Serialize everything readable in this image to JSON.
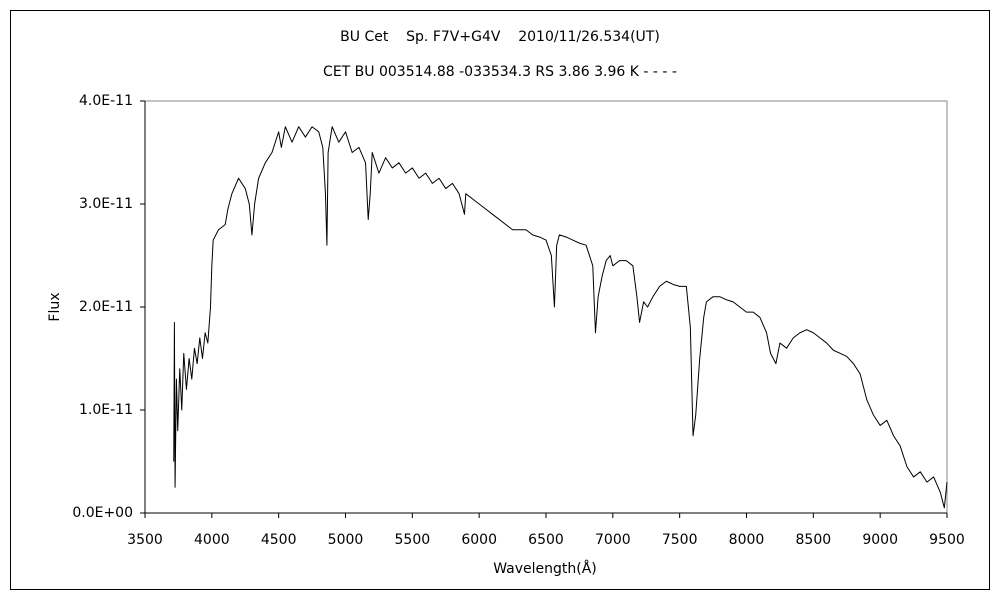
{
  "chart_data": {
    "type": "line",
    "title": "BU Cet    Sp. F7V+G4V    2010/11/26.534(UT)",
    "subtitle": "CET BU 003514.88 -033534.3 RS 3.86 3.96 K - - - -",
    "x_label": "Wavelength(Å)",
    "y_label": "Flux",
    "xlim": [
      3500,
      9500
    ],
    "xticks": [
      3500,
      4000,
      4500,
      5000,
      5500,
      6000,
      6500,
      7000,
      7500,
      8000,
      8500,
      9000,
      9500
    ],
    "ylim": [
      0,
      4e-11
    ],
    "yticks": [
      {
        "value": 0,
        "label": "0.0E+00"
      },
      {
        "value": 1e-11,
        "label": "1.0E-11"
      },
      {
        "value": 2e-11,
        "label": "2.0E-11"
      },
      {
        "value": 3e-11,
        "label": "3.0E-11"
      },
      {
        "value": 4e-11,
        "label": "4.0E-11"
      }
    ],
    "grid": false,
    "series": [
      {
        "color": "#000000",
        "x": [
          3715,
          3720,
          3725,
          3735,
          3745,
          3760,
          3775,
          3790,
          3810,
          3830,
          3850,
          3870,
          3890,
          3910,
          3930,
          3950,
          3970,
          3990,
          4000,
          4010,
          4050,
          4100,
          4120,
          4150,
          4200,
          4250,
          4280,
          4300,
          4320,
          4350,
          4400,
          4450,
          4500,
          4520,
          4550,
          4600,
          4650,
          4700,
          4750,
          4800,
          4830,
          4850,
          4861,
          4870,
          4900,
          4950,
          5000,
          5050,
          5100,
          5150,
          5170,
          5185,
          5200,
          5250,
          5300,
          5350,
          5400,
          5450,
          5500,
          5550,
          5600,
          5650,
          5700,
          5750,
          5800,
          5850,
          5890,
          5900,
          5950,
          6000,
          6050,
          6100,
          6150,
          6200,
          6250,
          6300,
          6350,
          6400,
          6450,
          6500,
          6540,
          6563,
          6580,
          6600,
          6650,
          6700,
          6750,
          6800,
          6850,
          6870,
          6890,
          6920,
          6950,
          6980,
          7000,
          7050,
          7100,
          7150,
          7180,
          7200,
          7230,
          7260,
          7300,
          7350,
          7400,
          7450,
          7500,
          7550,
          7580,
          7600,
          7620,
          7650,
          7680,
          7700,
          7750,
          7800,
          7850,
          7900,
          7950,
          8000,
          8050,
          8100,
          8150,
          8180,
          8220,
          8250,
          8300,
          8350,
          8400,
          8450,
          8500,
          8550,
          8600,
          8650,
          8700,
          8750,
          8800,
          8850,
          8900,
          8950,
          9000,
          9050,
          9100,
          9150,
          9200,
          9250,
          9300,
          9350,
          9400,
          9450,
          9480,
          9500
        ],
        "values": [
          5e-12,
          1.85e-11,
          2.5e-12,
          1.3e-11,
          8e-12,
          1.4e-11,
          1e-11,
          1.55e-11,
          1.2e-11,
          1.5e-11,
          1.3e-11,
          1.6e-11,
          1.45e-11,
          1.7e-11,
          1.5e-11,
          1.75e-11,
          1.65e-11,
          2e-11,
          2.4e-11,
          2.65e-11,
          2.75e-11,
          2.8e-11,
          2.95e-11,
          3.1e-11,
          3.25e-11,
          3.15e-11,
          3e-11,
          2.7e-11,
          3e-11,
          3.25e-11,
          3.4e-11,
          3.5e-11,
          3.7e-11,
          3.55e-11,
          3.75e-11,
          3.6e-11,
          3.75e-11,
          3.65e-11,
          3.75e-11,
          3.7e-11,
          3.55e-11,
          3.1e-11,
          2.6e-11,
          3.5e-11,
          3.75e-11,
          3.6e-11,
          3.7e-11,
          3.5e-11,
          3.55e-11,
          3.4e-11,
          2.85e-11,
          3.1e-11,
          3.5e-11,
          3.3e-11,
          3.45e-11,
          3.35e-11,
          3.4e-11,
          3.3e-11,
          3.35e-11,
          3.25e-11,
          3.3e-11,
          3.2e-11,
          3.25e-11,
          3.15e-11,
          3.2e-11,
          3.1e-11,
          2.9e-11,
          3.1e-11,
          3.05e-11,
          3e-11,
          2.95e-11,
          2.9e-11,
          2.85e-11,
          2.8e-11,
          2.75e-11,
          2.75e-11,
          2.75e-11,
          2.7e-11,
          2.68e-11,
          2.65e-11,
          2.5e-11,
          2e-11,
          2.6e-11,
          2.7e-11,
          2.68e-11,
          2.65e-11,
          2.62e-11,
          2.6e-11,
          2.4e-11,
          1.75e-11,
          2.1e-11,
          2.3e-11,
          2.45e-11,
          2.5e-11,
          2.4e-11,
          2.45e-11,
          2.45e-11,
          2.4e-11,
          2.1e-11,
          1.85e-11,
          2.05e-11,
          2e-11,
          2.1e-11,
          2.2e-11,
          2.25e-11,
          2.22e-11,
          2.2e-11,
          2.2e-11,
          1.8e-11,
          7.5e-12,
          9.5e-12,
          1.5e-11,
          1.9e-11,
          2.05e-11,
          2.1e-11,
          2.1e-11,
          2.07e-11,
          2.05e-11,
          2e-11,
          1.95e-11,
          1.95e-11,
          1.9e-11,
          1.75e-11,
          1.55e-11,
          1.45e-11,
          1.65e-11,
          1.6e-11,
          1.7e-11,
          1.75e-11,
          1.78e-11,
          1.75e-11,
          1.7e-11,
          1.65e-11,
          1.58e-11,
          1.55e-11,
          1.52e-11,
          1.45e-11,
          1.35e-11,
          1.1e-11,
          9.5e-12,
          8.5e-12,
          9e-12,
          7.5e-12,
          6.5e-12,
          4.5e-12,
          3.5e-12,
          4e-12,
          3e-12,
          3.5e-12,
          2e-12,
          5e-13,
          3e-12
        ]
      }
    ]
  }
}
